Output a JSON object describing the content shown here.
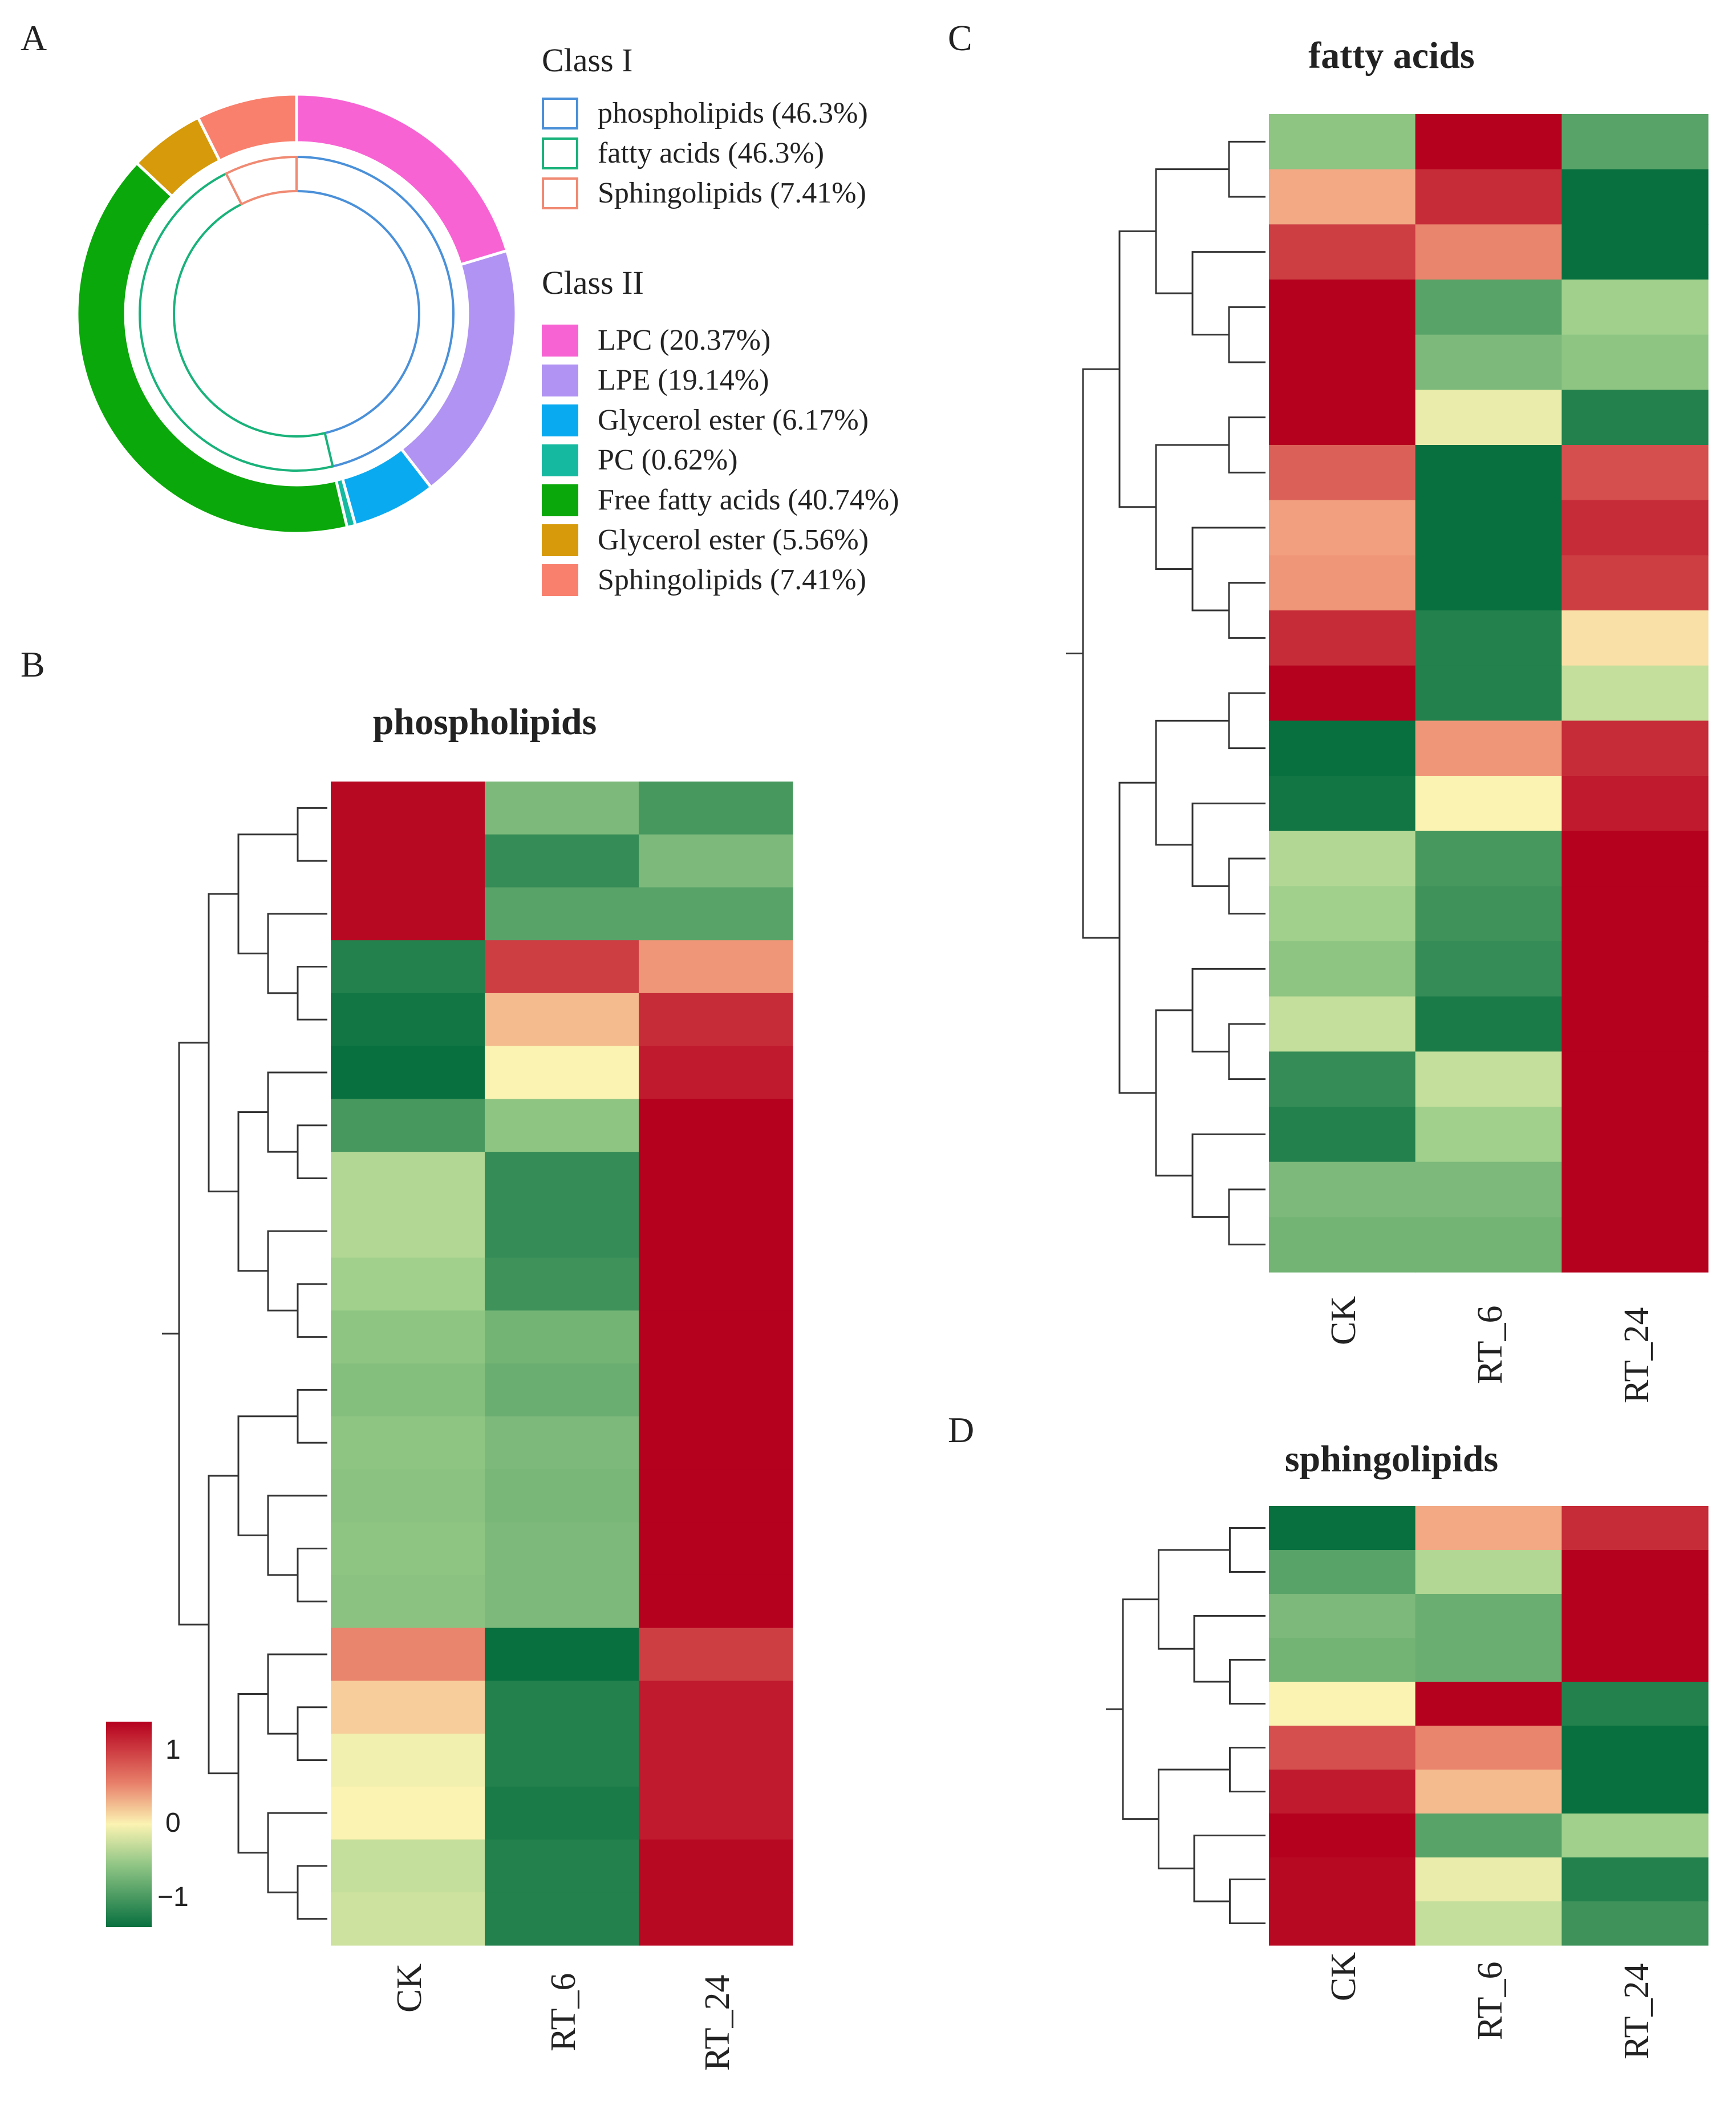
{
  "panels": {
    "a": {
      "letter": "A"
    },
    "b": {
      "letter": "B",
      "title": "phospholipids"
    },
    "c": {
      "letter": "C",
      "title": "fatty acids"
    },
    "d": {
      "letter": "D",
      "title": "sphingolipids"
    }
  },
  "legend": {
    "class1": {
      "heading": "Class I",
      "items": [
        {
          "label": "phospholipids (46.3%)",
          "color": "#4a90d9"
        },
        {
          "label": "fatty acids (46.3%)",
          "color": "#19b27a"
        },
        {
          "label": "Sphingolipids (7.41%)",
          "color": "#f08a73"
        }
      ]
    },
    "class2": {
      "heading": "Class II",
      "items": [
        {
          "label": "LPC (20.37%)",
          "color": "#f763d3"
        },
        {
          "label": "LPE (19.14%)",
          "color": "#b093f2"
        },
        {
          "label": "Glycerol ester (6.17%)",
          "color": "#0aaaf0"
        },
        {
          "label": "PC (0.62%)",
          "color": "#15b9a0"
        },
        {
          "label": "Free fatty acids (40.74%)",
          "color": "#0aa80a"
        },
        {
          "label": "Glycerol ester (5.56%)",
          "color": "#d69a0a"
        },
        {
          "label": "Sphingolipids (7.41%)",
          "color": "#f8806d"
        }
      ]
    }
  },
  "colorbar": {
    "ticks": [
      "1",
      "0",
      "−1"
    ],
    "colors": [
      "#b5001e",
      "#fbf3b2",
      "#08703f"
    ]
  },
  "chart_data": [
    {
      "type": "pie",
      "ring": "outer",
      "labels": [
        "LPC",
        "LPE",
        "Glycerol ester",
        "PC",
        "Free fatty acids",
        "Glycerol ester",
        "Sphingolipids"
      ],
      "values": [
        20.37,
        19.14,
        6.17,
        0.62,
        40.74,
        5.56,
        7.41
      ],
      "colors": [
        "#f763d3",
        "#b093f2",
        "#0aaaf0",
        "#15b9a0",
        "#0aa80a",
        "#d69a0a",
        "#f8806d"
      ]
    },
    {
      "type": "pie",
      "ring": "inner",
      "labels": [
        "phospholipids",
        "fatty acids",
        "Sphingolipids"
      ],
      "values": [
        46.3,
        46.3,
        7.41
      ],
      "colors": [
        "#4a90d9",
        "#19b27a",
        "#f08a73"
      ]
    },
    {
      "type": "heatmap",
      "title": "phospholipids",
      "columns": [
        "CK",
        "RT_6",
        "RT_24"
      ],
      "scale": [
        -1,
        1
      ],
      "rows": [
        [
          1.3,
          -0.7,
          -1.0
        ],
        [
          1.3,
          -1.1,
          -0.7
        ],
        [
          1.3,
          -0.9,
          -0.9
        ],
        [
          -1.2,
          1.0,
          0.5
        ],
        [
          -1.3,
          0.3,
          1.1
        ],
        [
          -1.4,
          0.0,
          1.2
        ],
        [
          -1.0,
          -0.6,
          1.35
        ],
        [
          -0.4,
          -1.1,
          1.35
        ],
        [
          -0.4,
          -1.1,
          1.35
        ],
        [
          -0.5,
          -1.05,
          1.35
        ],
        [
          -0.6,
          -0.75,
          1.35
        ],
        [
          -0.65,
          -0.8,
          1.35
        ],
        [
          -0.6,
          -0.7,
          1.35
        ],
        [
          -0.62,
          -0.72,
          1.35
        ],
        [
          -0.6,
          -0.7,
          1.35
        ],
        [
          -0.62,
          -0.7,
          1.35
        ],
        [
          0.6,
          -1.35,
          1.0
        ],
        [
          0.2,
          -1.2,
          1.2
        ],
        [
          -0.05,
          -1.2,
          1.2
        ],
        [
          0.0,
          -1.25,
          1.2
        ],
        [
          -0.3,
          -1.2,
          1.3
        ],
        [
          -0.25,
          -1.2,
          1.3
        ]
      ]
    },
    {
      "type": "heatmap",
      "title": "fatty acids",
      "columns": [
        "CK",
        "RT_6",
        "RT_24"
      ],
      "scale": [
        -1,
        1
      ],
      "rows": [
        [
          -0.6,
          1.35,
          -0.9
        ],
        [
          0.4,
          1.1,
          -1.35
        ],
        [
          1.0,
          0.6,
          -1.35
        ],
        [
          1.35,
          -0.9,
          -0.5
        ],
        [
          1.35,
          -0.7,
          -0.6
        ],
        [
          1.35,
          -0.1,
          -1.2
        ],
        [
          0.8,
          -1.35,
          0.9
        ],
        [
          0.45,
          -1.35,
          1.1
        ],
        [
          0.5,
          -1.35,
          1.0
        ],
        [
          1.1,
          -1.2,
          0.1
        ],
        [
          1.35,
          -1.2,
          -0.3
        ],
        [
          -1.35,
          0.5,
          1.1
        ],
        [
          -1.3,
          0.0,
          1.2
        ],
        [
          -0.4,
          -1.0,
          1.35
        ],
        [
          -0.5,
          -1.05,
          1.35
        ],
        [
          -0.6,
          -1.1,
          1.35
        ],
        [
          -0.3,
          -1.25,
          1.35
        ],
        [
          -1.1,
          -0.3,
          1.35
        ],
        [
          -1.2,
          -0.5,
          1.35
        ],
        [
          -0.7,
          -0.7,
          1.35
        ],
        [
          -0.75,
          -0.75,
          1.35
        ]
      ]
    },
    {
      "type": "heatmap",
      "title": "sphingolipids",
      "columns": [
        "CK",
        "RT_6",
        "RT_24"
      ],
      "scale": [
        -1,
        1
      ],
      "rows": [
        [
          -1.35,
          0.4,
          1.1
        ],
        [
          -0.9,
          -0.4,
          1.35
        ],
        [
          -0.7,
          -0.8,
          1.35
        ],
        [
          -0.75,
          -0.8,
          1.35
        ],
        [
          0.0,
          1.35,
          -1.2
        ],
        [
          0.9,
          0.6,
          -1.35
        ],
        [
          1.2,
          0.3,
          -1.35
        ],
        [
          1.35,
          -0.9,
          -0.5
        ],
        [
          1.3,
          -0.1,
          -1.2
        ],
        [
          1.3,
          -0.3,
          -1.05
        ]
      ]
    }
  ]
}
